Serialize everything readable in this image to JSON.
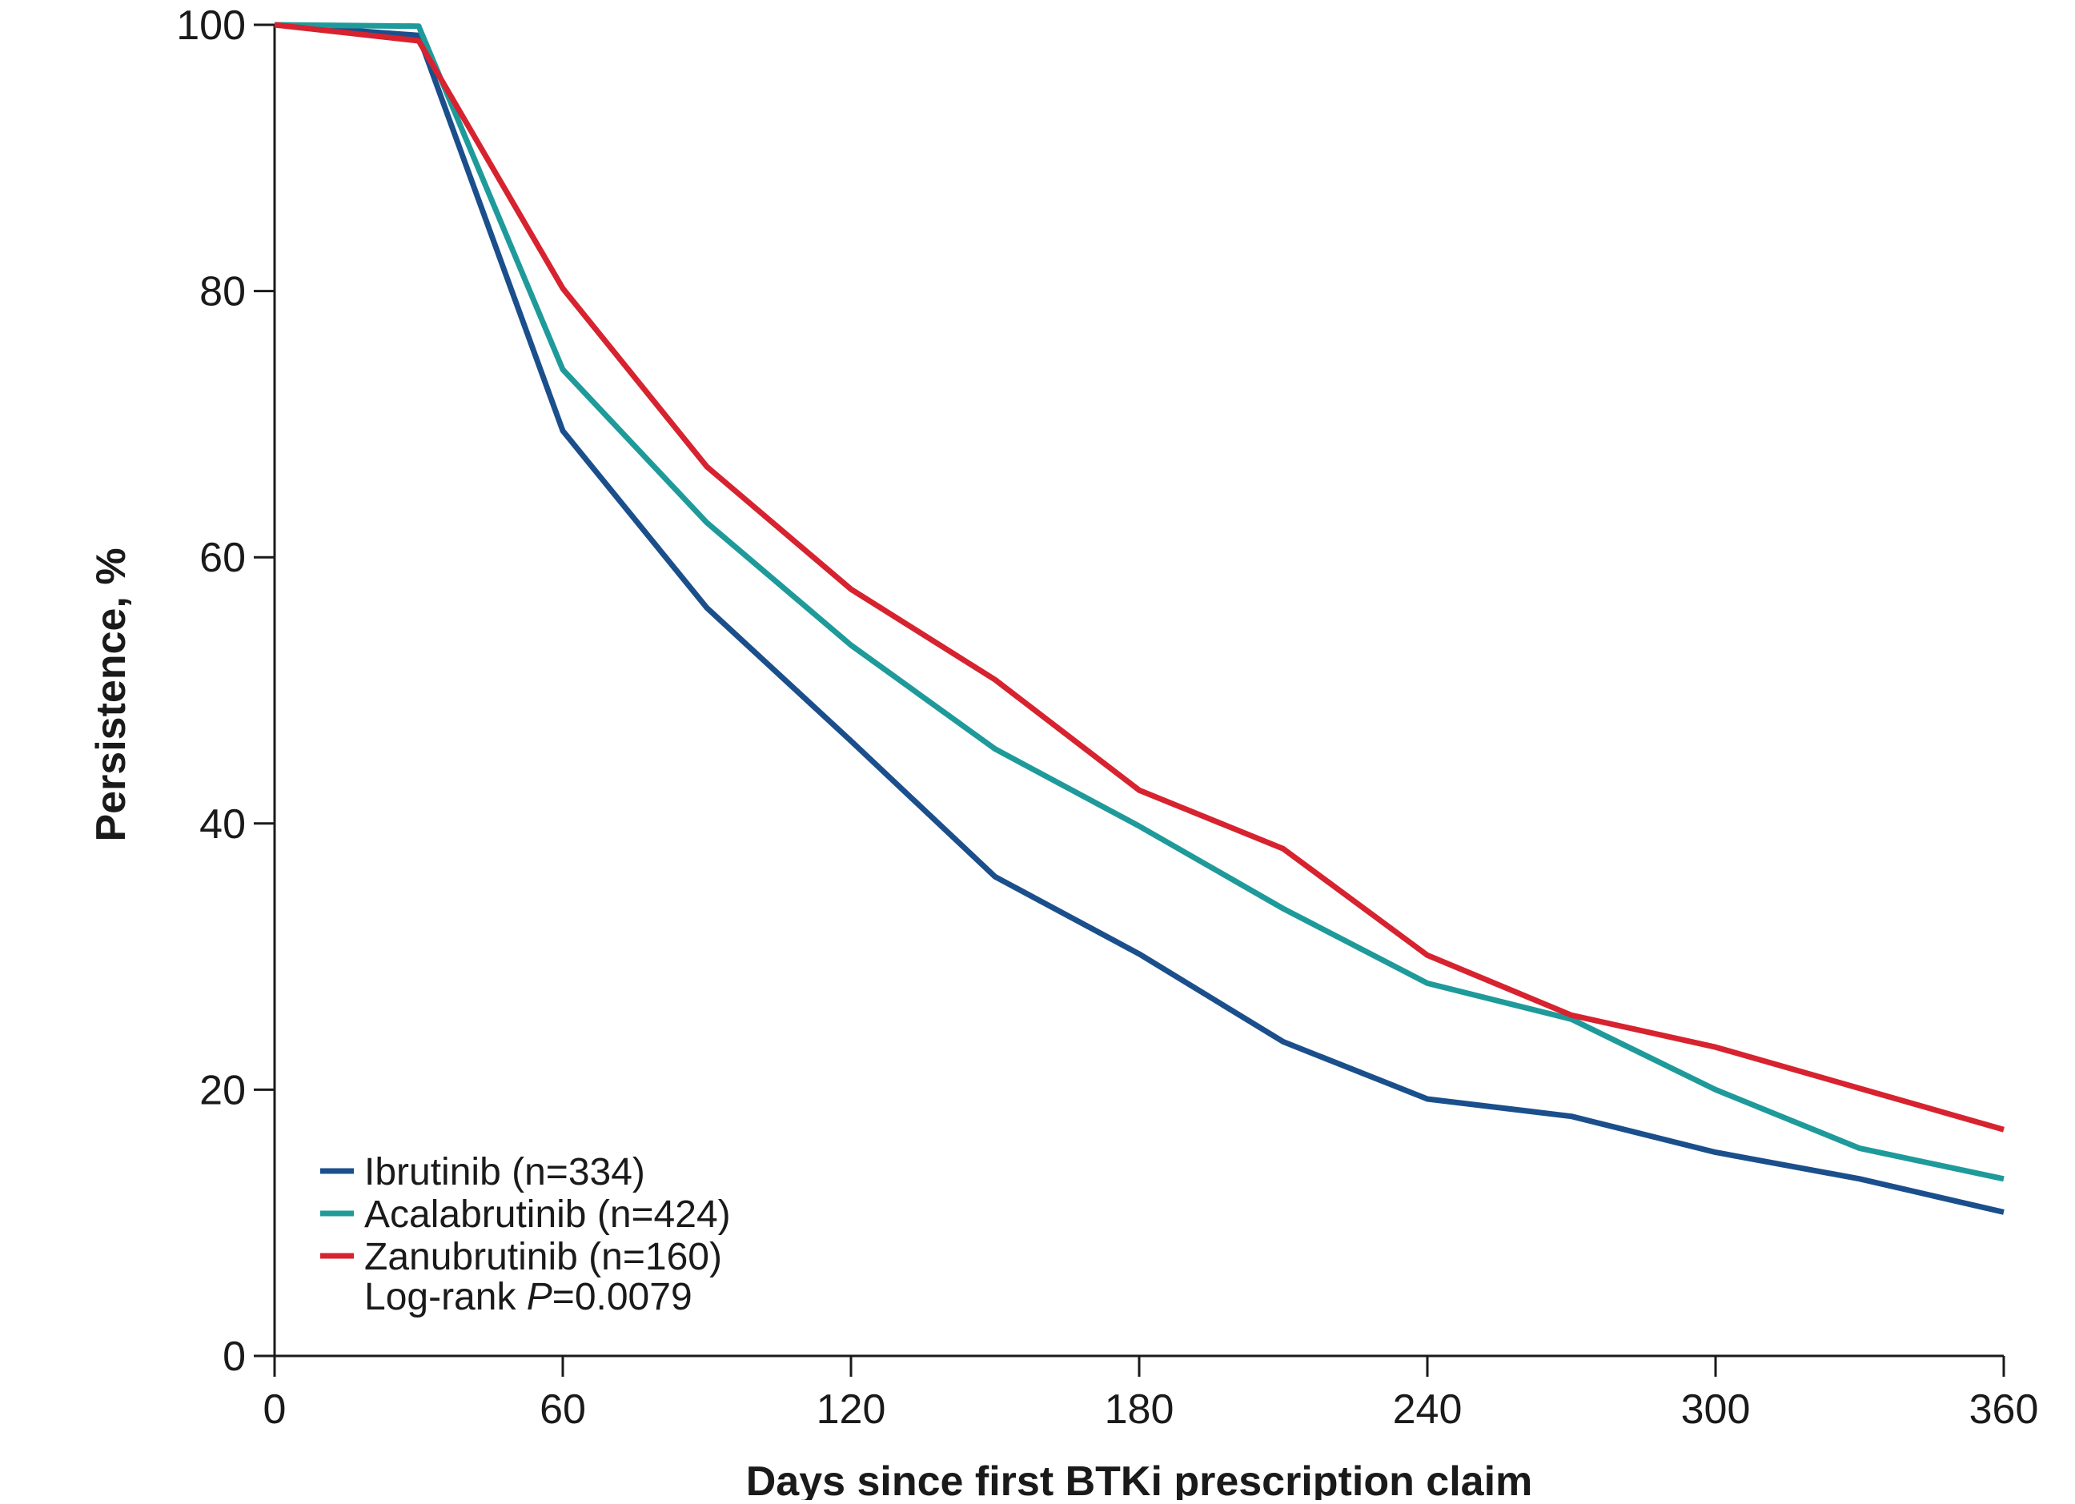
{
  "chart_data": {
    "type": "line",
    "title": "",
    "xlabel": "Days since first BTKi prescription claim",
    "ylabel": "Persistence, %",
    "xlim": [
      0,
      360
    ],
    "ylim": [
      0,
      100
    ],
    "x_ticks": [
      0,
      60,
      120,
      180,
      240,
      300,
      360
    ],
    "y_ticks": [
      0,
      20,
      40,
      60,
      80,
      100
    ],
    "grid": false,
    "legend_position": "bottom-left",
    "series": [
      {
        "name": "Ibrutinib (n=334)",
        "color": "#1b4f8c",
        "points": [
          [
            0,
            100
          ],
          [
            30,
            99.2
          ],
          [
            60,
            69.5
          ],
          [
            90,
            56.2
          ],
          [
            120,
            46.2
          ],
          [
            150,
            36
          ],
          [
            180,
            30.2
          ],
          [
            210,
            23.6
          ],
          [
            240,
            19.3
          ],
          [
            270,
            18
          ],
          [
            300,
            15.3
          ],
          [
            330,
            13.3
          ],
          [
            360,
            10.8
          ]
        ]
      },
      {
        "name": "Acalabrutinib (n=424)",
        "color": "#1f9a9a",
        "points": [
          [
            0,
            100
          ],
          [
            30,
            99.9
          ],
          [
            60,
            74.1
          ],
          [
            90,
            62.6
          ],
          [
            120,
            53.4
          ],
          [
            150,
            45.6
          ],
          [
            180,
            39.8
          ],
          [
            210,
            33.6
          ],
          [
            240,
            28
          ],
          [
            270,
            25.3
          ],
          [
            300,
            20
          ],
          [
            330,
            15.6
          ],
          [
            360,
            13.3
          ]
        ]
      },
      {
        "name": "Zanubrutinib (n=160)",
        "color": "#d7232f",
        "points": [
          [
            0,
            100
          ],
          [
            30,
            98.8
          ],
          [
            60,
            80.2
          ],
          [
            90,
            66.8
          ],
          [
            120,
            57.6
          ],
          [
            150,
            50.8
          ],
          [
            180,
            42.5
          ],
          [
            210,
            38.1
          ],
          [
            240,
            30.1
          ],
          [
            270,
            25.6
          ],
          [
            300,
            23.2
          ],
          [
            330,
            20.1
          ],
          [
            360,
            17
          ]
        ]
      }
    ],
    "annotation": {
      "prefix": "Log-rank ",
      "italic": "P",
      "suffix": "=0.0079"
    }
  }
}
